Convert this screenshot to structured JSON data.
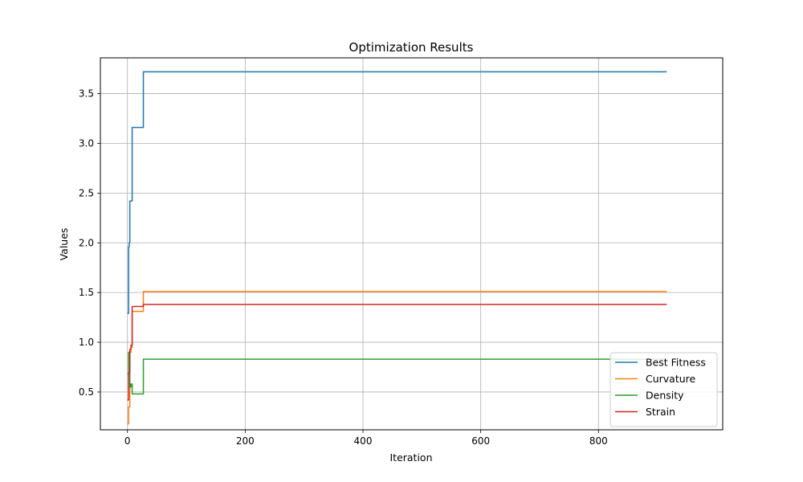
{
  "chart_data": {
    "type": "line",
    "title": "Optimization Results",
    "xlabel": "Iteration",
    "ylabel": "Values",
    "xlim": [
      -46,
      1011
    ],
    "ylim": [
      0.12,
      3.86
    ],
    "xticks": [
      0,
      200,
      400,
      600,
      800
    ],
    "yticks": [
      0.5,
      1.0,
      1.5,
      2.0,
      2.5,
      3.0,
      3.5
    ],
    "ytick_labels": [
      "0.5",
      "1.0",
      "1.5",
      "2.0",
      "2.5",
      "3.0",
      "3.5"
    ],
    "grid": true,
    "legend_position": "lower-right",
    "series": [
      {
        "name": "Best Fitness",
        "color": "#1f77b4",
        "x": [
          0,
          2,
          2,
          3,
          3,
          4,
          4,
          6,
          6,
          8,
          8,
          27,
          27,
          916
        ],
        "y": [
          1.29,
          1.29,
          1.96,
          1.96,
          2.0,
          2.0,
          2.42,
          2.42,
          2.42,
          2.42,
          3.16,
          3.16,
          3.72,
          3.72
        ]
      },
      {
        "name": "Curvature",
        "color": "#ff7f0e",
        "x": [
          0,
          2,
          2,
          4,
          4,
          6,
          6,
          8,
          8,
          27,
          27,
          916
        ],
        "y": [
          0.18,
          0.18,
          0.35,
          0.35,
          0.9,
          0.9,
          0.95,
          0.95,
          1.31,
          1.31,
          1.51,
          1.51
        ]
      },
      {
        "name": "Density",
        "color": "#2ca02c",
        "x": [
          0,
          2,
          2,
          4,
          4,
          6,
          6,
          8,
          8,
          27,
          27,
          916
        ],
        "y": [
          0.68,
          0.68,
          0.9,
          0.9,
          0.55,
          0.55,
          0.58,
          0.58,
          0.48,
          0.48,
          0.83,
          0.83
        ]
      },
      {
        "name": "Strain",
        "color": "#d62728",
        "x": [
          0,
          2,
          2,
          4,
          4,
          6,
          6,
          8,
          8,
          27,
          27,
          916
        ],
        "y": [
          0.42,
          0.42,
          0.7,
          0.7,
          0.93,
          0.93,
          0.97,
          0.97,
          1.36,
          1.36,
          1.38,
          1.38
        ]
      }
    ]
  }
}
